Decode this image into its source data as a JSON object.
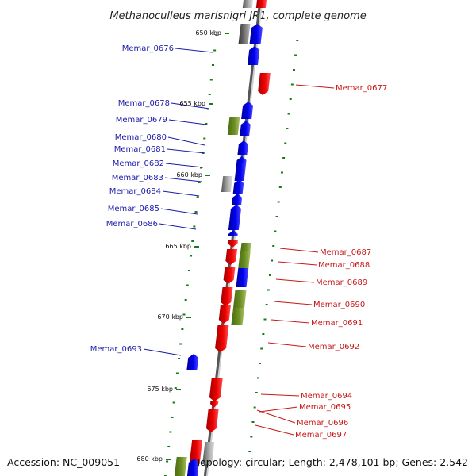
{
  "title": "Methanoculleus marisnigri JR1, complete genome",
  "footer": {
    "accession": "Accession: NC_009051",
    "summary": "Topology: circular; Length: 2,478,101 bp; Genes: 2,542"
  },
  "colors": {
    "plus_strand": "#ee0000",
    "minus_strand": "#0000ee",
    "other_feature": "#6b8e23",
    "gray_feature": "#888888",
    "tick": "#1a7a1a",
    "backbone": "#555555",
    "left_label": "#1a1aa8",
    "right_label": "#c81818"
  },
  "kbp_markers": [
    "650 kbp",
    "655 kbp",
    "660 kbp",
    "665 kbp",
    "670 kbp",
    "675 kbp",
    "680 kbp"
  ],
  "left_genes": [
    "Memar_0676",
    "Memar_0678",
    "Memar_0679",
    "Memar_0680",
    "Memar_0681",
    "Memar_0682",
    "Memar_0683",
    "Memar_0684",
    "Memar_0685",
    "Memar_0686",
    "Memar_0693"
  ],
  "right_genes": [
    "Memar_0677",
    "Memar_0687",
    "Memar_0688",
    "Memar_0689",
    "Memar_0690",
    "Memar_0691",
    "Memar_0692",
    "Memar_0694",
    "Memar_0695",
    "Memar_0696",
    "Memar_0697"
  ]
}
